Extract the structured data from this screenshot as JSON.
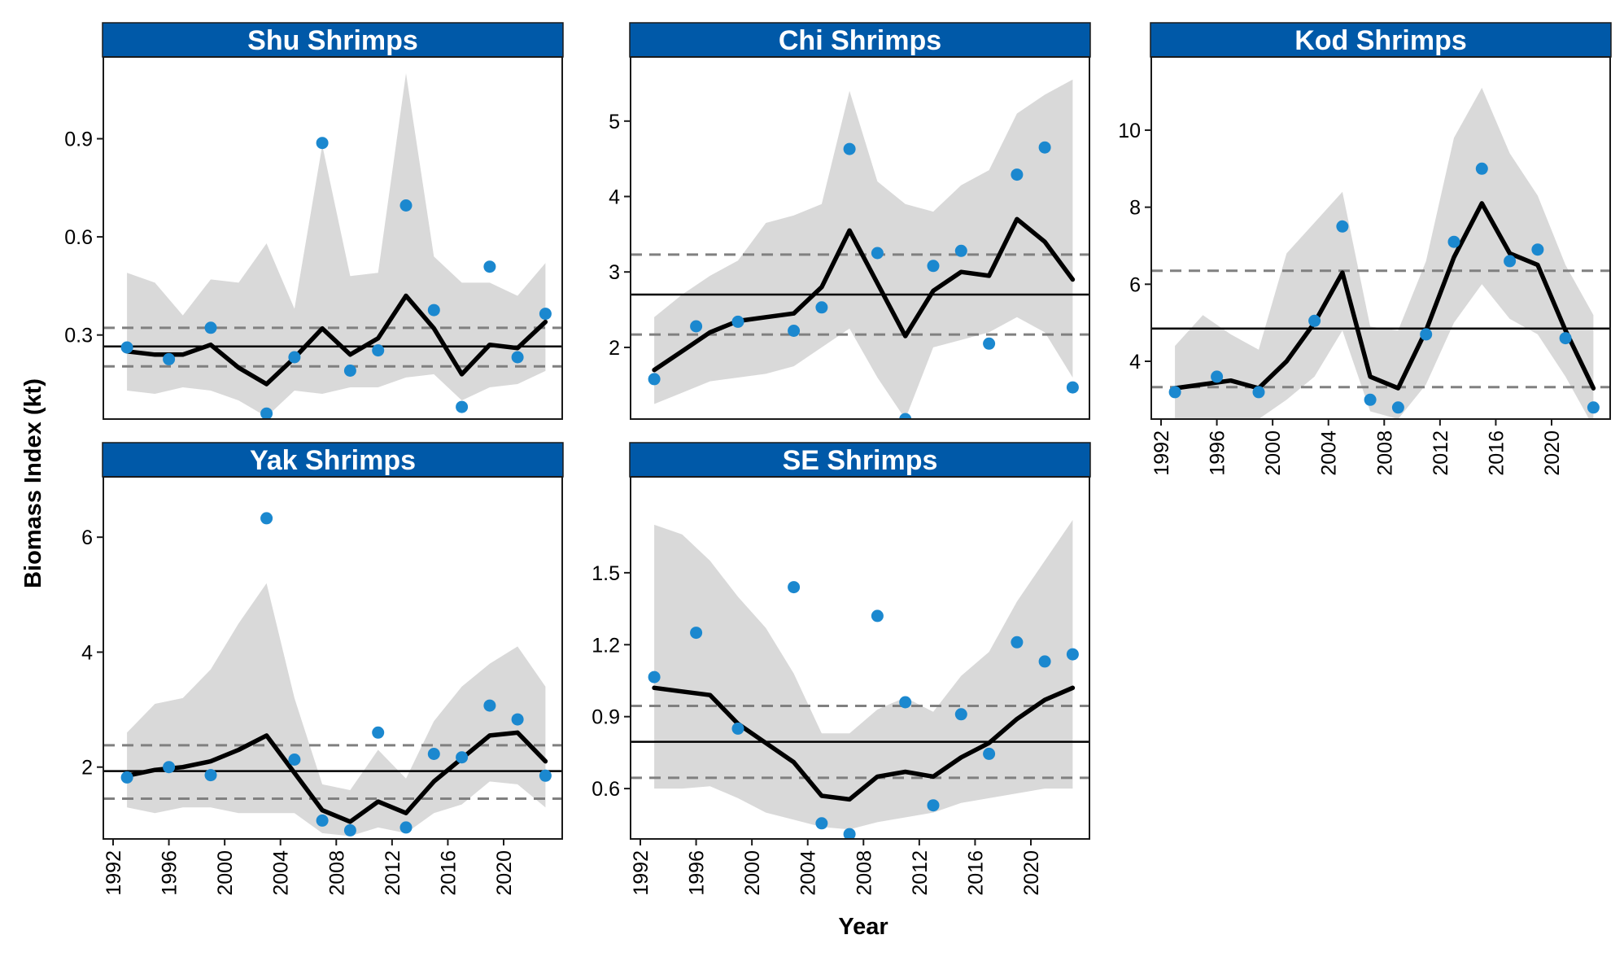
{
  "figure": {
    "y_axis_title": "Biomass Index (kt)",
    "x_axis_title": "Year"
  },
  "colors": {
    "strip_bg": "#0059a8",
    "strip_text": "#ffffff",
    "points": "#1b88cf",
    "ribbon": "#d9d9d9",
    "trend_line": "#000000",
    "mean_line": "#000000",
    "sd_dashed": "#808080"
  },
  "chart_data": [
    {
      "type": "line",
      "title": "Shu Shrimps",
      "xlim": [
        1991.3,
        2024.2
      ],
      "ylim": [
        0.043,
        1.15
      ],
      "yticks": [
        0.3,
        0.6,
        0.9
      ],
      "ytick_labels": [
        "0.3",
        "0.6",
        "0.9"
      ],
      "xticks": [],
      "observed": {
        "x": [
          1993,
          1996,
          1999,
          2003,
          2005,
          2007,
          2009,
          2011,
          2013,
          2015,
          2017,
          2019,
          2021,
          2023
        ],
        "y": [
          0.262,
          0.226,
          0.322,
          0.06,
          0.232,
          0.887,
          0.191,
          0.253,
          0.696,
          0.376,
          0.08,
          0.509,
          0.232,
          0.365
        ]
      },
      "trend": {
        "x": [
          1993,
          1995,
          1997,
          1999,
          2001,
          2003,
          2005,
          2007,
          2009,
          2011,
          2013,
          2015,
          2017,
          2019,
          2021,
          2023
        ],
        "y": [
          0.25,
          0.24,
          0.24,
          0.27,
          0.2,
          0.15,
          0.23,
          0.32,
          0.24,
          0.29,
          0.42,
          0.32,
          0.18,
          0.27,
          0.26,
          0.34
        ]
      },
      "ribbon": {
        "x": [
          1993,
          1995,
          1997,
          1999,
          2001,
          2003,
          2005,
          2007,
          2009,
          2011,
          2013,
          2015,
          2017,
          2019,
          2021,
          2023
        ],
        "upper": [
          0.49,
          0.46,
          0.36,
          0.47,
          0.46,
          0.58,
          0.38,
          0.88,
          0.48,
          0.49,
          1.1,
          0.54,
          0.46,
          0.46,
          0.42,
          0.52
        ],
        "lower": [
          0.13,
          0.12,
          0.14,
          0.13,
          0.1,
          0.05,
          0.13,
          0.12,
          0.14,
          0.14,
          0.17,
          0.18,
          0.1,
          0.14,
          0.15,
          0.19
        ]
      },
      "mean": 0.265,
      "sd_upper": 0.322,
      "sd_lower": 0.204
    },
    {
      "type": "line",
      "title": "Chi Shrimps",
      "xlim": [
        1991.3,
        2024.2
      ],
      "ylim": [
        1.05,
        5.85
      ],
      "yticks": [
        2,
        3,
        4,
        5
      ],
      "ytick_labels": [
        "2",
        "3",
        "4",
        "5"
      ],
      "xticks": [],
      "observed": {
        "x": [
          1993,
          1996,
          1999,
          2003,
          2005,
          2007,
          2009,
          2011,
          2013,
          2015,
          2017,
          2019,
          2021,
          2023
        ],
        "y": [
          1.58,
          2.28,
          2.34,
          2.22,
          2.53,
          4.63,
          3.25,
          1.05,
          3.08,
          3.28,
          2.05,
          4.29,
          4.65,
          1.47
        ]
      },
      "trend": {
        "x": [
          1993,
          1995,
          1997,
          1999,
          2001,
          2003,
          2005,
          2007,
          2009,
          2011,
          2013,
          2015,
          2017,
          2019,
          2021,
          2023
        ],
        "y": [
          1.7,
          1.95,
          2.2,
          2.35,
          2.4,
          2.45,
          2.8,
          3.55,
          2.85,
          2.15,
          2.75,
          3.0,
          2.95,
          3.7,
          3.4,
          2.9
        ]
      },
      "ribbon": {
        "x": [
          1993,
          1995,
          1997,
          1999,
          2001,
          2003,
          2005,
          2007,
          2009,
          2011,
          2013,
          2015,
          2017,
          2019,
          2021,
          2023
        ],
        "upper": [
          2.4,
          2.7,
          2.95,
          3.15,
          3.65,
          3.75,
          3.9,
          5.4,
          4.2,
          3.9,
          3.8,
          4.15,
          4.35,
          5.1,
          5.35,
          5.55
        ],
        "lower": [
          1.25,
          1.4,
          1.55,
          1.6,
          1.65,
          1.75,
          2.0,
          2.25,
          1.6,
          1.05,
          2.0,
          2.1,
          2.2,
          2.4,
          2.2,
          1.6
        ]
      },
      "mean": 2.7,
      "sd_upper": 3.23,
      "sd_lower": 2.17
    },
    {
      "type": "line",
      "title": "Kod Shrimps",
      "xlim": [
        1991.3,
        2024.2
      ],
      "ylim": [
        2.5,
        11.9
      ],
      "yticks": [
        4,
        6,
        8,
        10
      ],
      "ytick_labels": [
        "4",
        "6",
        "8",
        "10"
      ],
      "xticks": [
        1992,
        1996,
        2000,
        2004,
        2008,
        2012,
        2016,
        2020
      ],
      "xtick_labels": [
        "1992",
        "1996",
        "2000",
        "2004",
        "2008",
        "2012",
        "2016",
        "2020"
      ],
      "observed": {
        "x": [
          1993,
          1996,
          1999,
          2003,
          2005,
          2007,
          2009,
          2011,
          2013,
          2015,
          2017,
          2019,
          2021,
          2023
        ],
        "y": [
          3.2,
          3.6,
          3.2,
          5.05,
          7.5,
          3.0,
          2.8,
          4.7,
          7.1,
          9.0,
          6.6,
          6.9,
          4.6,
          2.8
        ]
      },
      "trend": {
        "x": [
          1993,
          1995,
          1997,
          1999,
          2001,
          2003,
          2005,
          2007,
          2009,
          2011,
          2013,
          2015,
          2017,
          2019,
          2021,
          2023
        ],
        "y": [
          3.3,
          3.4,
          3.5,
          3.3,
          4.0,
          5.0,
          6.3,
          3.6,
          3.3,
          4.8,
          6.7,
          8.1,
          6.8,
          6.5,
          4.8,
          3.3
        ]
      },
      "ribbon": {
        "x": [
          1993,
          1995,
          1997,
          1999,
          2001,
          2003,
          2005,
          2007,
          2009,
          2011,
          2013,
          2015,
          2017,
          2019,
          2021,
          2023
        ],
        "upper": [
          4.4,
          5.2,
          4.7,
          4.3,
          6.8,
          7.6,
          8.4,
          4.9,
          4.8,
          6.6,
          9.8,
          11.1,
          9.4,
          8.3,
          6.5,
          5.2
        ],
        "lower": [
          2.4,
          2.5,
          2.3,
          2.5,
          3.0,
          3.6,
          4.8,
          2.7,
          2.5,
          3.4,
          5.0,
          6.0,
          5.1,
          4.7,
          3.6,
          2.3
        ]
      },
      "mean": 4.85,
      "sd_upper": 6.35,
      "sd_lower": 3.33
    },
    {
      "type": "line",
      "title": "Yak Shrimps",
      "xlim": [
        1991.3,
        2024.2
      ],
      "ylim": [
        0.75,
        7.05
      ],
      "yticks": [
        2,
        4,
        6
      ],
      "ytick_labels": [
        "2",
        "4",
        "6"
      ],
      "xticks": [
        1992,
        1996,
        2000,
        2004,
        2008,
        2012,
        2016,
        2020
      ],
      "xtick_labels": [
        "1992",
        "1996",
        "2000",
        "2004",
        "2008",
        "2012",
        "2016",
        "2020"
      ],
      "observed": {
        "x": [
          1993,
          1996,
          1999,
          2003,
          2005,
          2007,
          2009,
          2011,
          2013,
          2015,
          2017,
          2019,
          2021,
          2023
        ],
        "y": [
          1.82,
          2.0,
          1.86,
          6.33,
          2.13,
          1.07,
          0.9,
          2.6,
          0.95,
          2.23,
          2.17,
          3.07,
          2.83,
          1.85
        ]
      },
      "trend": {
        "x": [
          1993,
          1995,
          1997,
          1999,
          2001,
          2003,
          2005,
          2007,
          2009,
          2011,
          2013,
          2015,
          2017,
          2019,
          2021,
          2023
        ],
        "y": [
          1.85,
          1.95,
          2.0,
          2.1,
          2.3,
          2.55,
          1.9,
          1.25,
          1.05,
          1.4,
          1.2,
          1.75,
          2.15,
          2.55,
          2.6,
          2.1
        ]
      },
      "ribbon": {
        "x": [
          1993,
          1995,
          1997,
          1999,
          2001,
          2003,
          2005,
          2007,
          2009,
          2011,
          2013,
          2015,
          2017,
          2019,
          2021,
          2023
        ],
        "upper": [
          2.6,
          3.1,
          3.2,
          3.7,
          4.5,
          5.2,
          3.2,
          1.7,
          1.6,
          2.3,
          1.8,
          2.8,
          3.4,
          3.8,
          4.1,
          3.4
        ],
        "lower": [
          1.3,
          1.2,
          1.3,
          1.3,
          1.2,
          1.2,
          1.2,
          0.85,
          0.8,
          0.95,
          0.85,
          1.2,
          1.35,
          1.75,
          1.7,
          1.3
        ]
      },
      "mean": 1.93,
      "sd_upper": 2.38,
      "sd_lower": 1.45
    },
    {
      "type": "line",
      "title": "SE Shrimps",
      "xlim": [
        1991.3,
        2024.2
      ],
      "ylim": [
        0.39,
        1.9
      ],
      "yticks": [
        0.6,
        0.9,
        1.2,
        1.5
      ],
      "ytick_labels": [
        "0.6",
        "0.9",
        "1.2",
        "1.5"
      ],
      "xticks": [
        1992,
        1996,
        2000,
        2004,
        2008,
        2012,
        2016,
        2020
      ],
      "xtick_labels": [
        "1992",
        "1996",
        "2000",
        "2004",
        "2008",
        "2012",
        "2016",
        "2020"
      ],
      "observed": {
        "x": [
          1993,
          1996,
          1999,
          2003,
          2005,
          2007,
          2009,
          2011,
          2013,
          2015,
          2017,
          2019,
          2021,
          2023
        ],
        "y": [
          1.065,
          1.25,
          0.85,
          1.44,
          0.455,
          0.41,
          1.32,
          0.96,
          0.53,
          0.91,
          0.745,
          1.21,
          1.13,
          1.16
        ]
      },
      "trend": {
        "x": [
          1993,
          1995,
          1997,
          1999,
          2001,
          2003,
          2005,
          2007,
          2009,
          2011,
          2013,
          2015,
          2017,
          2019,
          2021,
          2023
        ],
        "y": [
          1.02,
          1.005,
          0.99,
          0.87,
          0.79,
          0.71,
          0.57,
          0.555,
          0.65,
          0.67,
          0.65,
          0.73,
          0.79,
          0.89,
          0.97,
          1.02
        ]
      },
      "ribbon": {
        "x": [
          1993,
          1995,
          1997,
          1999,
          2001,
          2003,
          2005,
          2007,
          2009,
          2011,
          2013,
          2015,
          2017,
          2019,
          2021,
          2023
        ],
        "upper": [
          1.7,
          1.66,
          1.55,
          1.4,
          1.27,
          1.08,
          0.83,
          0.83,
          0.93,
          0.98,
          0.92,
          1.07,
          1.17,
          1.38,
          1.55,
          1.72
        ],
        "lower": [
          0.6,
          0.6,
          0.61,
          0.56,
          0.5,
          0.47,
          0.44,
          0.43,
          0.46,
          0.48,
          0.5,
          0.54,
          0.56,
          0.58,
          0.6,
          0.6
        ]
      },
      "mean": 0.795,
      "sd_upper": 0.945,
      "sd_lower": 0.645
    }
  ]
}
